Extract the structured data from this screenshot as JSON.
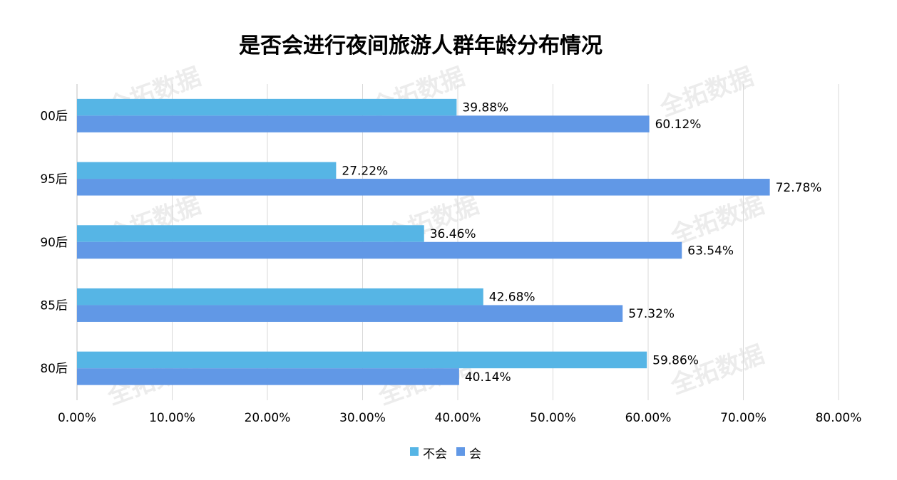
{
  "watermark": "全拓数据",
  "chart_data": {
    "type": "bar",
    "orientation": "horizontal",
    "title": "是否会进行夜间旅游人群年龄分布情况",
    "categories": [
      "00后",
      "95后",
      "90后",
      "85后",
      "80后"
    ],
    "series": [
      {
        "name": "不会",
        "color": "#56b5e5",
        "values": [
          39.88,
          27.22,
          36.46,
          42.68,
          59.86
        ]
      },
      {
        "name": "会",
        "color": "#6198e6",
        "values": [
          60.12,
          72.78,
          63.54,
          57.32,
          40.14
        ]
      }
    ],
    "value_labels": [
      [
        "39.88%",
        "27.22%",
        "36.46%",
        "42.68%",
        "59.86%"
      ],
      [
        "60.12%",
        "72.78%",
        "63.54%",
        "57.32%",
        "40.14%"
      ]
    ],
    "xlim": [
      0,
      80
    ],
    "xticks": [
      "0.00%",
      "10.00%",
      "20.00%",
      "30.00%",
      "40.00%",
      "50.00%",
      "60.00%",
      "70.00%",
      "80.00%"
    ],
    "grid": true,
    "legend_position": "bottom"
  }
}
